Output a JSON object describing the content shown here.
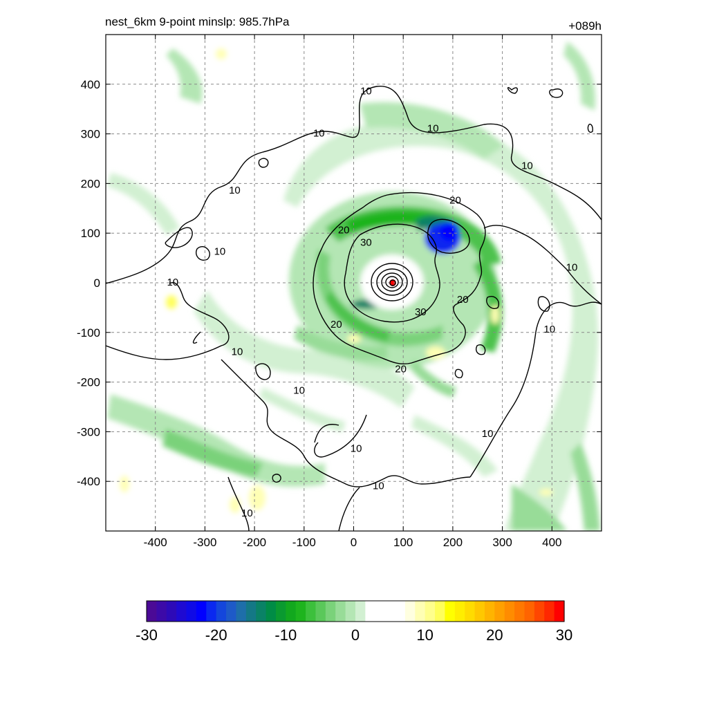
{
  "header": {
    "title_left": "nest_6km  9-point minslp: 985.7hPa",
    "title_right": "+089h"
  },
  "chart_data": {
    "type": "heatmap",
    "xlim": [
      -500,
      500
    ],
    "ylim": [
      -500,
      500
    ],
    "x_ticks": [
      -400,
      -300,
      -200,
      -100,
      0,
      100,
      200,
      300,
      400
    ],
    "y_ticks": [
      400,
      300,
      200,
      100,
      0,
      -100,
      -200,
      -300,
      -400
    ],
    "x_tick_labels": [
      "-400",
      "-300",
      "-200",
      "-100",
      "0",
      "100",
      "200",
      "300",
      "400"
    ],
    "y_tick_labels": [
      "400",
      "300",
      "200",
      "100",
      "0",
      "-100",
      "-200",
      "-300",
      "-400"
    ],
    "grid": true,
    "storm_center": [
      77,
      0
    ],
    "contour_labels": [
      {
        "text": "10",
        "x": 25,
        "y": 385
      },
      {
        "text": "10",
        "x": 160,
        "y": 310
      },
      {
        "text": "10",
        "x": -70,
        "y": 300
      },
      {
        "text": "10",
        "x": 350,
        "y": 235
      },
      {
        "text": "10",
        "x": -240,
        "y": 185
      },
      {
        "text": "10",
        "x": -270,
        "y": 62
      },
      {
        "text": "10",
        "x": -365,
        "y": 0
      },
      {
        "text": "10",
        "x": 440,
        "y": 30
      },
      {
        "text": "10",
        "x": 395,
        "y": -95
      },
      {
        "text": "10",
        "x": -235,
        "y": -140
      },
      {
        "text": "10",
        "x": -110,
        "y": -218
      },
      {
        "text": "10",
        "x": 270,
        "y": -305
      },
      {
        "text": "10",
        "x": 5,
        "y": -335
      },
      {
        "text": "10",
        "x": 50,
        "y": -410
      },
      {
        "text": "10",
        "x": -215,
        "y": -465
      },
      {
        "text": "20",
        "x": 205,
        "y": 165
      },
      {
        "text": "20",
        "x": -20,
        "y": 105
      },
      {
        "text": "20",
        "x": 220,
        "y": -35
      },
      {
        "text": "20",
        "x": -35,
        "y": -85
      },
      {
        "text": "20",
        "x": 95,
        "y": -175
      },
      {
        "text": "30",
        "x": 25,
        "y": 80
      },
      {
        "text": "30",
        "x": 135,
        "y": -60
      }
    ],
    "colorbar": {
      "min": -30,
      "max": 30,
      "tick_values": [
        -30,
        -20,
        -10,
        0,
        10,
        20,
        30
      ],
      "tick_labels": [
        "-30",
        "-20",
        "-10",
        "0",
        "10",
        "20",
        "30"
      ],
      "colors": [
        "#4b0a96",
        "#3c0aa8",
        "#2d0ab8",
        "#1e0ad2",
        "#0f0ae6",
        "#0000ff",
        "#0a28f0",
        "#1446dc",
        "#1e5ac8",
        "#1e6eaa",
        "#147886",
        "#0a8266",
        "#008c46",
        "#0a9a30",
        "#12a81e",
        "#1eb41e",
        "#3cc03c",
        "#5ac85a",
        "#7ad27a",
        "#98dc98",
        "#b4e6b4",
        "#d2f0d2",
        "#ffffff",
        "#ffffff",
        "#ffffff",
        "#ffffff",
        "#ffffe0",
        "#ffffb4",
        "#ffff8c",
        "#ffff5a",
        "#ffff00",
        "#ffee00",
        "#ffdc00",
        "#ffc800",
        "#ffb400",
        "#ffa000",
        "#ff8c00",
        "#ff7800",
        "#ff6400",
        "#ff4600",
        "#ff2800",
        "#ff0000"
      ]
    },
    "shading_colors": {
      "light_green": "#d2f0d2",
      "mid_green": "#98dc98",
      "green": "#4ec24e",
      "dark_green": "#1eb41e",
      "teal": "#0a8266",
      "blue": "#0a28f0",
      "light_yellow": "#ffffb4",
      "yellow": "#ffff5a",
      "red": "#ff0000"
    }
  }
}
